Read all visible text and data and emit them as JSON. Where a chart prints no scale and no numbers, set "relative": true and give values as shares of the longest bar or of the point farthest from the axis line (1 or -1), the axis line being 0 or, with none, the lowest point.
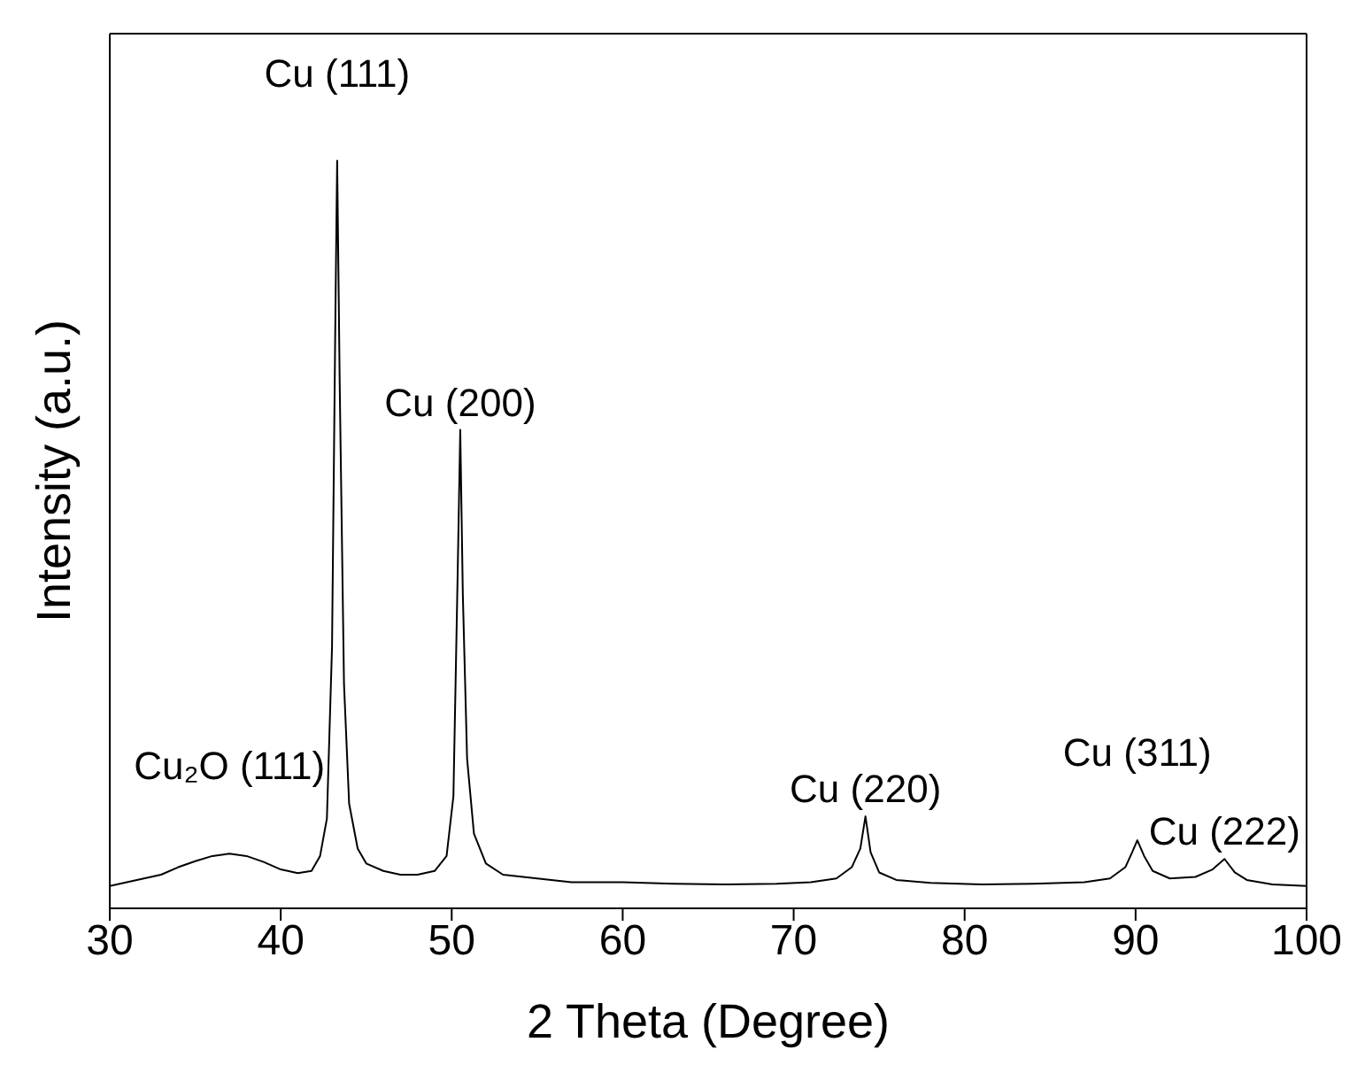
{
  "chart_data": {
    "type": "line",
    "relative": true,
    "xlabel": "2 Theta (Degree)",
    "ylabel": "Intensity (a.u.)",
    "x": [
      30,
      31,
      32,
      33,
      34,
      35,
      36,
      37,
      38,
      39,
      40,
      41,
      41.8,
      42.3,
      42.7,
      43.0,
      43.2,
      43.3,
      43.45,
      43.7,
      44.0,
      44.5,
      45,
      46,
      47,
      48,
      49,
      49.7,
      50.1,
      50.35,
      50.5,
      50.65,
      50.9,
      51.3,
      52,
      53,
      55,
      57,
      60,
      63,
      66,
      69,
      71,
      72.5,
      73.4,
      73.9,
      74.2,
      74.5,
      75,
      76,
      78,
      81,
      84,
      87,
      88.5,
      89.4,
      89.8,
      90.1,
      90.5,
      91,
      92,
      93.5,
      94.5,
      95.2,
      95.8,
      96.5,
      98,
      100
    ],
    "series": [
      {
        "color": "#000000",
        "values": [
          0.03,
          0.035,
          0.04,
          0.045,
          0.055,
          0.063,
          0.07,
          0.073,
          0.07,
          0.062,
          0.052,
          0.047,
          0.05,
          0.07,
          0.12,
          0.35,
          0.8,
          1.0,
          0.7,
          0.3,
          0.14,
          0.08,
          0.06,
          0.05,
          0.045,
          0.045,
          0.05,
          0.07,
          0.15,
          0.45,
          0.64,
          0.42,
          0.2,
          0.1,
          0.06,
          0.045,
          0.04,
          0.035,
          0.035,
          0.033,
          0.032,
          0.033,
          0.035,
          0.04,
          0.055,
          0.08,
          0.123,
          0.075,
          0.048,
          0.038,
          0.034,
          0.032,
          0.033,
          0.035,
          0.04,
          0.055,
          0.075,
          0.091,
          0.07,
          0.05,
          0.04,
          0.042,
          0.052,
          0.066,
          0.048,
          0.038,
          0.032,
          0.03
        ]
      }
    ],
    "xlim": [
      30,
      100
    ],
    "xticks": [
      30,
      40,
      50,
      60,
      70,
      80,
      90,
      100
    ],
    "grid": false,
    "legend": false,
    "line_style": "solid",
    "marker": "none",
    "annotations": [
      {
        "text": "Cu₂O (111)",
        "x": 37,
        "y": 0.073
      },
      {
        "text": "Cu (111)",
        "x": 43.3,
        "y": 1.0
      },
      {
        "text": "Cu (200)",
        "x": 50.5,
        "y": 0.64
      },
      {
        "text": "Cu (220)",
        "x": 74.2,
        "y": 0.123
      },
      {
        "text": "Cu (311)",
        "x": 90.1,
        "y": 0.091
      },
      {
        "text": "Cu (222)",
        "x": 95.2,
        "y": 0.066
      }
    ]
  }
}
